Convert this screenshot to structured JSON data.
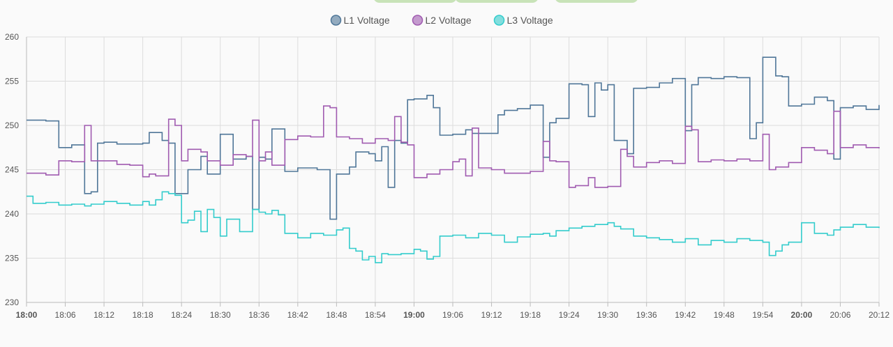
{
  "chart_data": {
    "type": "line",
    "title": "",
    "xlabel": "",
    "ylabel": "",
    "ylim": [
      230,
      260
    ],
    "xlim": [
      "18:00",
      "20:12"
    ],
    "grid": true,
    "legend_position": "top-center",
    "yticks": [
      230,
      235,
      240,
      245,
      250,
      255,
      260
    ],
    "xticks": [
      "18:00",
      "18:06",
      "18:12",
      "18:18",
      "18:24",
      "18:30",
      "18:36",
      "18:42",
      "18:48",
      "18:54",
      "19:00",
      "19:06",
      "19:12",
      "19:18",
      "19:24",
      "19:30",
      "19:36",
      "19:42",
      "19:48",
      "19:54",
      "20:00",
      "20:06",
      "20:12"
    ],
    "bold_xticks": [
      "18:00",
      "19:00",
      "20:00"
    ],
    "series": [
      {
        "name": "L1 Voltage",
        "color": "#4f7698",
        "x": [
          "18:00",
          "18:03",
          "18:05",
          "18:07",
          "18:09",
          "18:10",
          "18:11",
          "18:12",
          "18:14",
          "18:16",
          "18:18",
          "18:19",
          "18:21",
          "18:22",
          "18:23",
          "18:25",
          "18:27",
          "18:28",
          "18:30",
          "18:32",
          "18:34",
          "18:35",
          "18:36",
          "18:37",
          "18:38",
          "18:40",
          "18:42",
          "18:45",
          "18:47",
          "18:48",
          "18:50",
          "18:51",
          "18:53",
          "18:54",
          "18:55",
          "18:56",
          "18:57",
          "18:58",
          "18:59",
          "19:00",
          "19:02",
          "19:03",
          "19:04",
          "19:06",
          "19:08",
          "19:09",
          "19:12",
          "19:13",
          "19:14",
          "19:16",
          "19:18",
          "19:20",
          "19:21",
          "19:22",
          "19:24",
          "19:26",
          "19:27",
          "19:28",
          "19:29",
          "19:30",
          "19:31",
          "19:33",
          "19:34",
          "19:36",
          "19:38",
          "19:40",
          "19:42",
          "19:43",
          "19:44",
          "19:46",
          "19:48",
          "19:50",
          "19:52",
          "19:53",
          "19:54",
          "19:56",
          "19:57",
          "19:58",
          "20:00",
          "20:02",
          "20:04",
          "20:05",
          "20:06",
          "20:08",
          "20:10",
          "20:12"
        ],
        "y": [
          250.6,
          250.5,
          247.5,
          247.8,
          242.3,
          242.5,
          248.0,
          248.1,
          247.9,
          247.9,
          248.0,
          249.2,
          248.3,
          248.0,
          242.3,
          245.0,
          246.5,
          244.5,
          249.0,
          246.2,
          246.5,
          240.5,
          246.4,
          246.2,
          249.6,
          244.8,
          245.2,
          245.0,
          239.4,
          244.5,
          245.3,
          247.0,
          246.8,
          246.0,
          247.6,
          243.0,
          248.3,
          248.0,
          252.9,
          253.0,
          253.4,
          252.0,
          248.9,
          249.0,
          249.5,
          249.1,
          249.1,
          251.2,
          251.7,
          251.9,
          252.3,
          246.4,
          250.3,
          250.8,
          254.7,
          254.6,
          251.0,
          254.8,
          254.0,
          254.6,
          248.3,
          246.8,
          254.2,
          254.3,
          254.8,
          255.3,
          249.4,
          254.6,
          255.4,
          255.3,
          255.5,
          255.4,
          248.5,
          250.3,
          257.7,
          255.6,
          255.5,
          252.2,
          252.4,
          253.2,
          252.8,
          246.2,
          252.0,
          252.2,
          251.8,
          252.3
        ]
      },
      {
        "name": "L2 Voltage",
        "color": "#a05bb0",
        "x": [
          "18:00",
          "18:03",
          "18:05",
          "18:07",
          "18:09",
          "18:10",
          "18:12",
          "18:14",
          "18:16",
          "18:18",
          "18:19",
          "18:20",
          "18:22",
          "18:23",
          "18:24",
          "18:25",
          "18:27",
          "18:28",
          "18:30",
          "18:32",
          "18:34",
          "18:35",
          "18:36",
          "18:37",
          "18:38",
          "18:40",
          "18:42",
          "18:44",
          "18:46",
          "18:47",
          "18:48",
          "18:50",
          "18:52",
          "18:54",
          "18:56",
          "18:57",
          "18:58",
          "18:59",
          "19:00",
          "19:02",
          "19:04",
          "19:06",
          "19:07",
          "19:08",
          "19:09",
          "19:10",
          "19:12",
          "19:14",
          "19:16",
          "19:18",
          "19:20",
          "19:21",
          "19:22",
          "19:24",
          "19:25",
          "19:27",
          "19:28",
          "19:30",
          "19:32",
          "19:33",
          "19:34",
          "19:36",
          "19:38",
          "19:40",
          "19:42",
          "19:43",
          "19:44",
          "19:46",
          "19:48",
          "19:50",
          "19:52",
          "19:54",
          "19:55",
          "19:56",
          "19:58",
          "20:00",
          "20:02",
          "20:04",
          "20:05",
          "20:06",
          "20:08",
          "20:10",
          "20:12"
        ],
        "y": [
          244.6,
          244.4,
          246.0,
          245.9,
          250.0,
          246.0,
          246.0,
          245.6,
          245.5,
          244.2,
          244.5,
          244.3,
          250.7,
          250.0,
          246.0,
          247.3,
          247.0,
          246.0,
          245.5,
          246.7,
          246.5,
          250.6,
          246.0,
          247.0,
          245.5,
          248.4,
          248.8,
          248.7,
          252.2,
          252.0,
          248.7,
          248.5,
          248.0,
          248.5,
          248.3,
          251.0,
          248.1,
          247.8,
          244.1,
          244.5,
          245.0,
          245.9,
          246.2,
          244.3,
          249.7,
          245.2,
          245.0,
          244.6,
          244.6,
          244.8,
          248.2,
          246.0,
          245.9,
          243.0,
          243.2,
          244.1,
          243.0,
          243.1,
          247.3,
          246.5,
          245.3,
          245.8,
          246.0,
          245.7,
          249.9,
          249.5,
          245.9,
          246.1,
          246.0,
          246.2,
          246.0,
          249.0,
          245.0,
          245.3,
          245.8,
          247.5,
          247.2,
          246.8,
          251.6,
          247.5,
          247.8,
          247.5,
          247.4
        ]
      },
      {
        "name": "L3 Voltage",
        "color": "#33cccc",
        "x": [
          "18:00",
          "18:01",
          "18:03",
          "18:05",
          "18:07",
          "18:09",
          "18:10",
          "18:12",
          "18:14",
          "18:16",
          "18:18",
          "18:19",
          "18:20",
          "18:21",
          "18:22",
          "18:23",
          "18:24",
          "18:25",
          "18:26",
          "18:27",
          "18:28",
          "18:29",
          "18:30",
          "18:31",
          "18:33",
          "18:35",
          "18:36",
          "18:37",
          "18:38",
          "18:39",
          "18:40",
          "18:42",
          "18:44",
          "18:46",
          "18:48",
          "18:49",
          "18:50",
          "18:51",
          "18:52",
          "18:53",
          "18:54",
          "18:55",
          "18:56",
          "18:58",
          "19:00",
          "19:01",
          "19:02",
          "19:03",
          "19:04",
          "19:06",
          "19:08",
          "19:10",
          "19:12",
          "19:14",
          "19:16",
          "19:18",
          "19:20",
          "19:21",
          "19:22",
          "19:24",
          "19:26",
          "19:28",
          "19:30",
          "19:31",
          "19:32",
          "19:34",
          "19:36",
          "19:38",
          "19:40",
          "19:42",
          "19:44",
          "19:46",
          "19:48",
          "19:50",
          "19:52",
          "19:54",
          "19:55",
          "19:56",
          "19:57",
          "19:58",
          "20:00",
          "20:02",
          "20:04",
          "20:05",
          "20:06",
          "20:08",
          "20:10",
          "20:12"
        ],
        "y": [
          242.0,
          241.2,
          241.3,
          241.0,
          241.1,
          240.9,
          241.1,
          241.4,
          241.2,
          241.0,
          241.4,
          241.0,
          241.6,
          242.5,
          242.3,
          242.1,
          239.0,
          239.3,
          240.3,
          238.0,
          240.5,
          239.6,
          237.5,
          239.4,
          238.0,
          240.5,
          240.2,
          240.0,
          240.4,
          239.9,
          237.8,
          237.3,
          237.8,
          237.6,
          238.2,
          238.4,
          236.1,
          235.8,
          234.8,
          235.2,
          234.5,
          235.5,
          235.4,
          235.5,
          236.0,
          235.8,
          234.9,
          235.2,
          237.5,
          237.6,
          237.3,
          237.8,
          237.6,
          236.8,
          237.4,
          237.7,
          237.8,
          237.5,
          238.1,
          238.4,
          238.6,
          238.8,
          239.0,
          238.6,
          238.3,
          237.5,
          237.3,
          237.1,
          236.8,
          237.2,
          236.5,
          237.0,
          236.8,
          237.2,
          237.0,
          236.8,
          235.3,
          235.8,
          236.5,
          236.8,
          239.0,
          237.8,
          237.6,
          238.2,
          238.5,
          238.8,
          238.5,
          238.4
        ]
      }
    ]
  }
}
